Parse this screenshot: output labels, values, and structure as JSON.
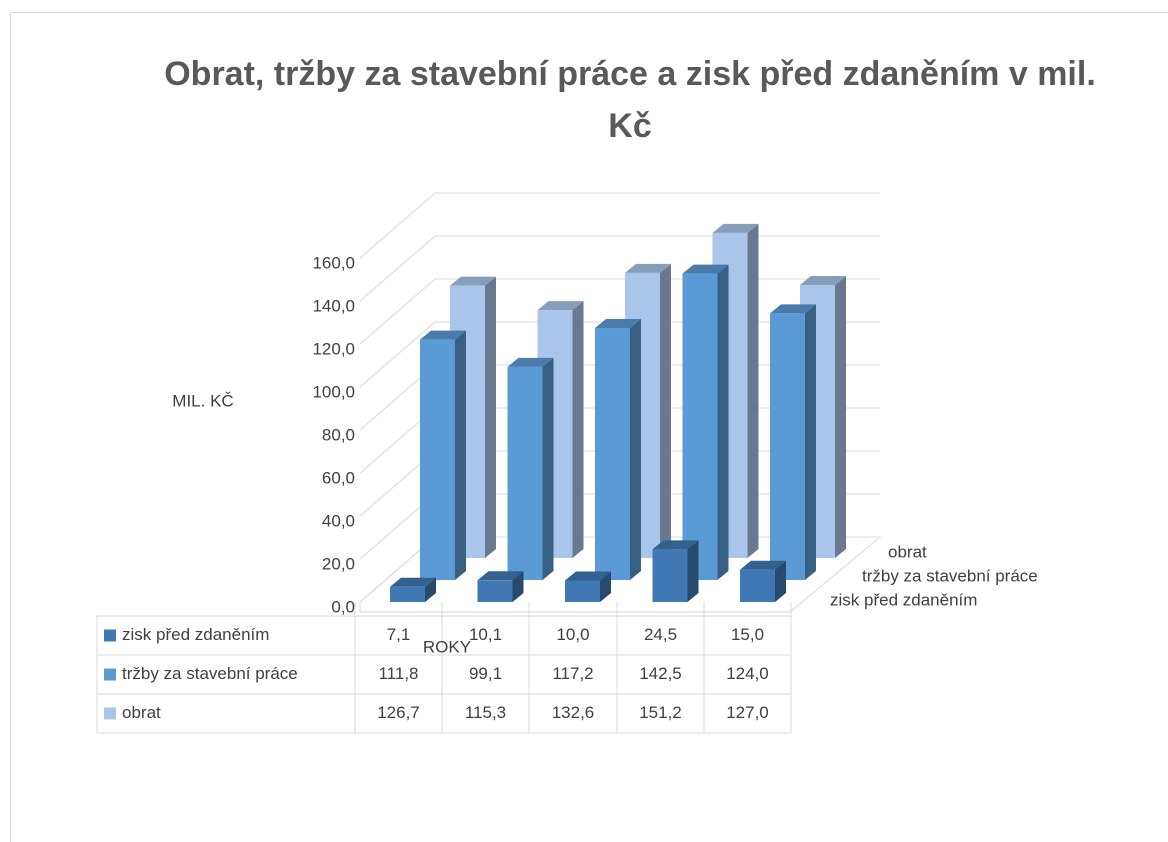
{
  "chart_data": {
    "type": "bar3d",
    "title": "Obrat, tržby za stavební práce a zisk před zdaněním v mil. Kč",
    "y_label": "MIL. KČ",
    "x_label": "ROKY",
    "categories": [
      null,
      null,
      null,
      null,
      null
    ],
    "series": [
      {
        "name": "zisk před zdaněním",
        "color": "#3f78b3",
        "values": [
          7.1,
          10.1,
          10.0,
          24.5,
          15.0
        ],
        "value_labels": [
          "7,1",
          "10,1",
          "10,0",
          "24,5",
          "15,0"
        ]
      },
      {
        "name": "tržby za stavební práce",
        "color": "#5b9bd5",
        "values": [
          111.8,
          99.1,
          117.2,
          142.5,
          124.0
        ],
        "value_labels": [
          "111,8",
          "99,1",
          "117,2",
          "142,5",
          "124,0"
        ]
      },
      {
        "name": "obrat",
        "color": "#a9c5e9",
        "values": [
          126.7,
          115.3,
          132.6,
          151.2,
          127.0
        ],
        "value_labels": [
          "126,7",
          "115,3",
          "132,6",
          "151,2",
          "127,0"
        ]
      }
    ],
    "ylim": [
      0,
      160
    ],
    "yticks": [
      {
        "value": 0,
        "label": "0,0"
      },
      {
        "value": 20,
        "label": "20,0"
      },
      {
        "value": 40,
        "label": "40,0"
      },
      {
        "value": 60,
        "label": "60,0"
      },
      {
        "value": 80,
        "label": "80,0"
      },
      {
        "value": 100,
        "label": "100,0"
      },
      {
        "value": 120,
        "label": "120,0"
      },
      {
        "value": 140,
        "label": "140,0"
      },
      {
        "value": 160,
        "label": "160,0"
      }
    ],
    "grid": true
  }
}
